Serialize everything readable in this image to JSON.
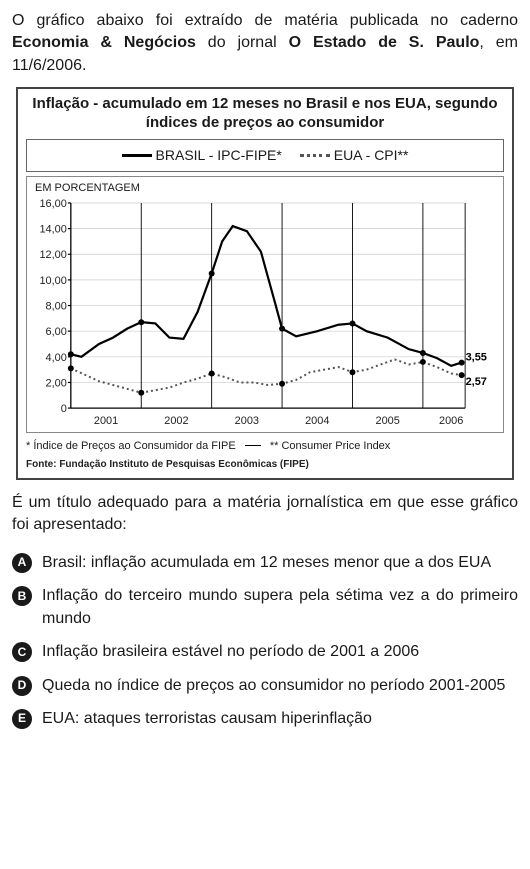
{
  "intro": {
    "pre": "O gráfico abaixo foi extraído de matéria publicada no caderno ",
    "bold1": "Economia & Negócios",
    "mid": " do jornal ",
    "bold2": "O Estado de S. Paulo",
    "post": ", em 11/6/2006."
  },
  "chart": {
    "title": "Inflação - acumulado em 12 meses no Brasil e nos EUA, segundo índices de preços ao consumidor",
    "legend": {
      "brasil": "BRASIL - IPC-FIPE*",
      "eua": "EUA - CPI**"
    },
    "y_axis_label": "EM PORCENTAGEM",
    "y_ticks": [
      "16,00",
      "14,00",
      "12,00",
      "10,00",
      "8,00",
      "6,00",
      "4,00",
      "2,00",
      "0"
    ],
    "y_ticks_values": [
      16,
      14,
      12,
      10,
      8,
      6,
      4,
      2,
      0
    ],
    "x_years": [
      "2001",
      "2002",
      "2003",
      "2004",
      "2005",
      "2006"
    ],
    "x_range": [
      0,
      5.6
    ],
    "y_range": [
      0,
      16
    ],
    "brasil_series": [
      [
        0.0,
        4.2
      ],
      [
        0.15,
        4.0
      ],
      [
        0.4,
        5.0
      ],
      [
        0.6,
        5.5
      ],
      [
        0.8,
        6.2
      ],
      [
        1.0,
        6.7
      ],
      [
        1.2,
        6.6
      ],
      [
        1.4,
        5.5
      ],
      [
        1.6,
        5.4
      ],
      [
        1.8,
        7.5
      ],
      [
        2.0,
        10.5
      ],
      [
        2.15,
        13.0
      ],
      [
        2.3,
        14.2
      ],
      [
        2.5,
        13.8
      ],
      [
        2.7,
        12.2
      ],
      [
        2.9,
        8.2
      ],
      [
        3.0,
        6.2
      ],
      [
        3.2,
        5.6
      ],
      [
        3.5,
        6.0
      ],
      [
        3.8,
        6.5
      ],
      [
        4.0,
        6.6
      ],
      [
        4.2,
        6.0
      ],
      [
        4.5,
        5.5
      ],
      [
        4.8,
        4.6
      ],
      [
        5.0,
        4.3
      ],
      [
        5.2,
        3.9
      ],
      [
        5.4,
        3.3
      ],
      [
        5.55,
        3.55
      ]
    ],
    "eua_series": [
      [
        0.0,
        3.1
      ],
      [
        0.2,
        2.6
      ],
      [
        0.4,
        2.1
      ],
      [
        0.6,
        1.8
      ],
      [
        0.8,
        1.5
      ],
      [
        1.0,
        1.2
      ],
      [
        1.2,
        1.4
      ],
      [
        1.4,
        1.6
      ],
      [
        1.6,
        2.0
      ],
      [
        1.8,
        2.3
      ],
      [
        2.0,
        2.7
      ],
      [
        2.2,
        2.4
      ],
      [
        2.4,
        2.0
      ],
      [
        2.6,
        2.0
      ],
      [
        2.8,
        1.8
      ],
      [
        3.0,
        1.9
      ],
      [
        3.2,
        2.2
      ],
      [
        3.4,
        2.8
      ],
      [
        3.6,
        3.0
      ],
      [
        3.8,
        3.2
      ],
      [
        4.0,
        2.8
      ],
      [
        4.2,
        3.0
      ],
      [
        4.4,
        3.4
      ],
      [
        4.6,
        3.8
      ],
      [
        4.8,
        3.4
      ],
      [
        5.0,
        3.6
      ],
      [
        5.2,
        3.2
      ],
      [
        5.4,
        2.7
      ],
      [
        5.55,
        2.57
      ]
    ],
    "end_labels": {
      "brasil": "3,55",
      "eua": "2,57"
    },
    "footnote1": "* Índice de Preços ao Consumidor da FIPE",
    "footnote2": "** Consumer Price Index",
    "source": "Fonte: Fundação Instituto de Pesquisas Econômicas (FIPE)",
    "colors": {
      "solid": "#000000",
      "dotted": "#555555",
      "grid": "#cccccc",
      "axis": "#000000",
      "background": "#ffffff"
    }
  },
  "stem": "É um título adequado para a matéria jornalística em que esse gráfico foi apresentado:",
  "options": [
    {
      "marker": "A",
      "text": "Brasil: inflação acumulada em 12 meses menor que a dos EUA"
    },
    {
      "marker": "B",
      "text": "Inflação do terceiro mundo supera pela sétima vez a do primeiro mundo"
    },
    {
      "marker": "C",
      "text": "Inflação brasileira estável no período de 2001 a 2006"
    },
    {
      "marker": "D",
      "text": "Queda no índice de preços ao consumidor no período 2001-2005"
    },
    {
      "marker": "E",
      "text": "EUA: ataques terroristas causam hiperinflação"
    }
  ]
}
